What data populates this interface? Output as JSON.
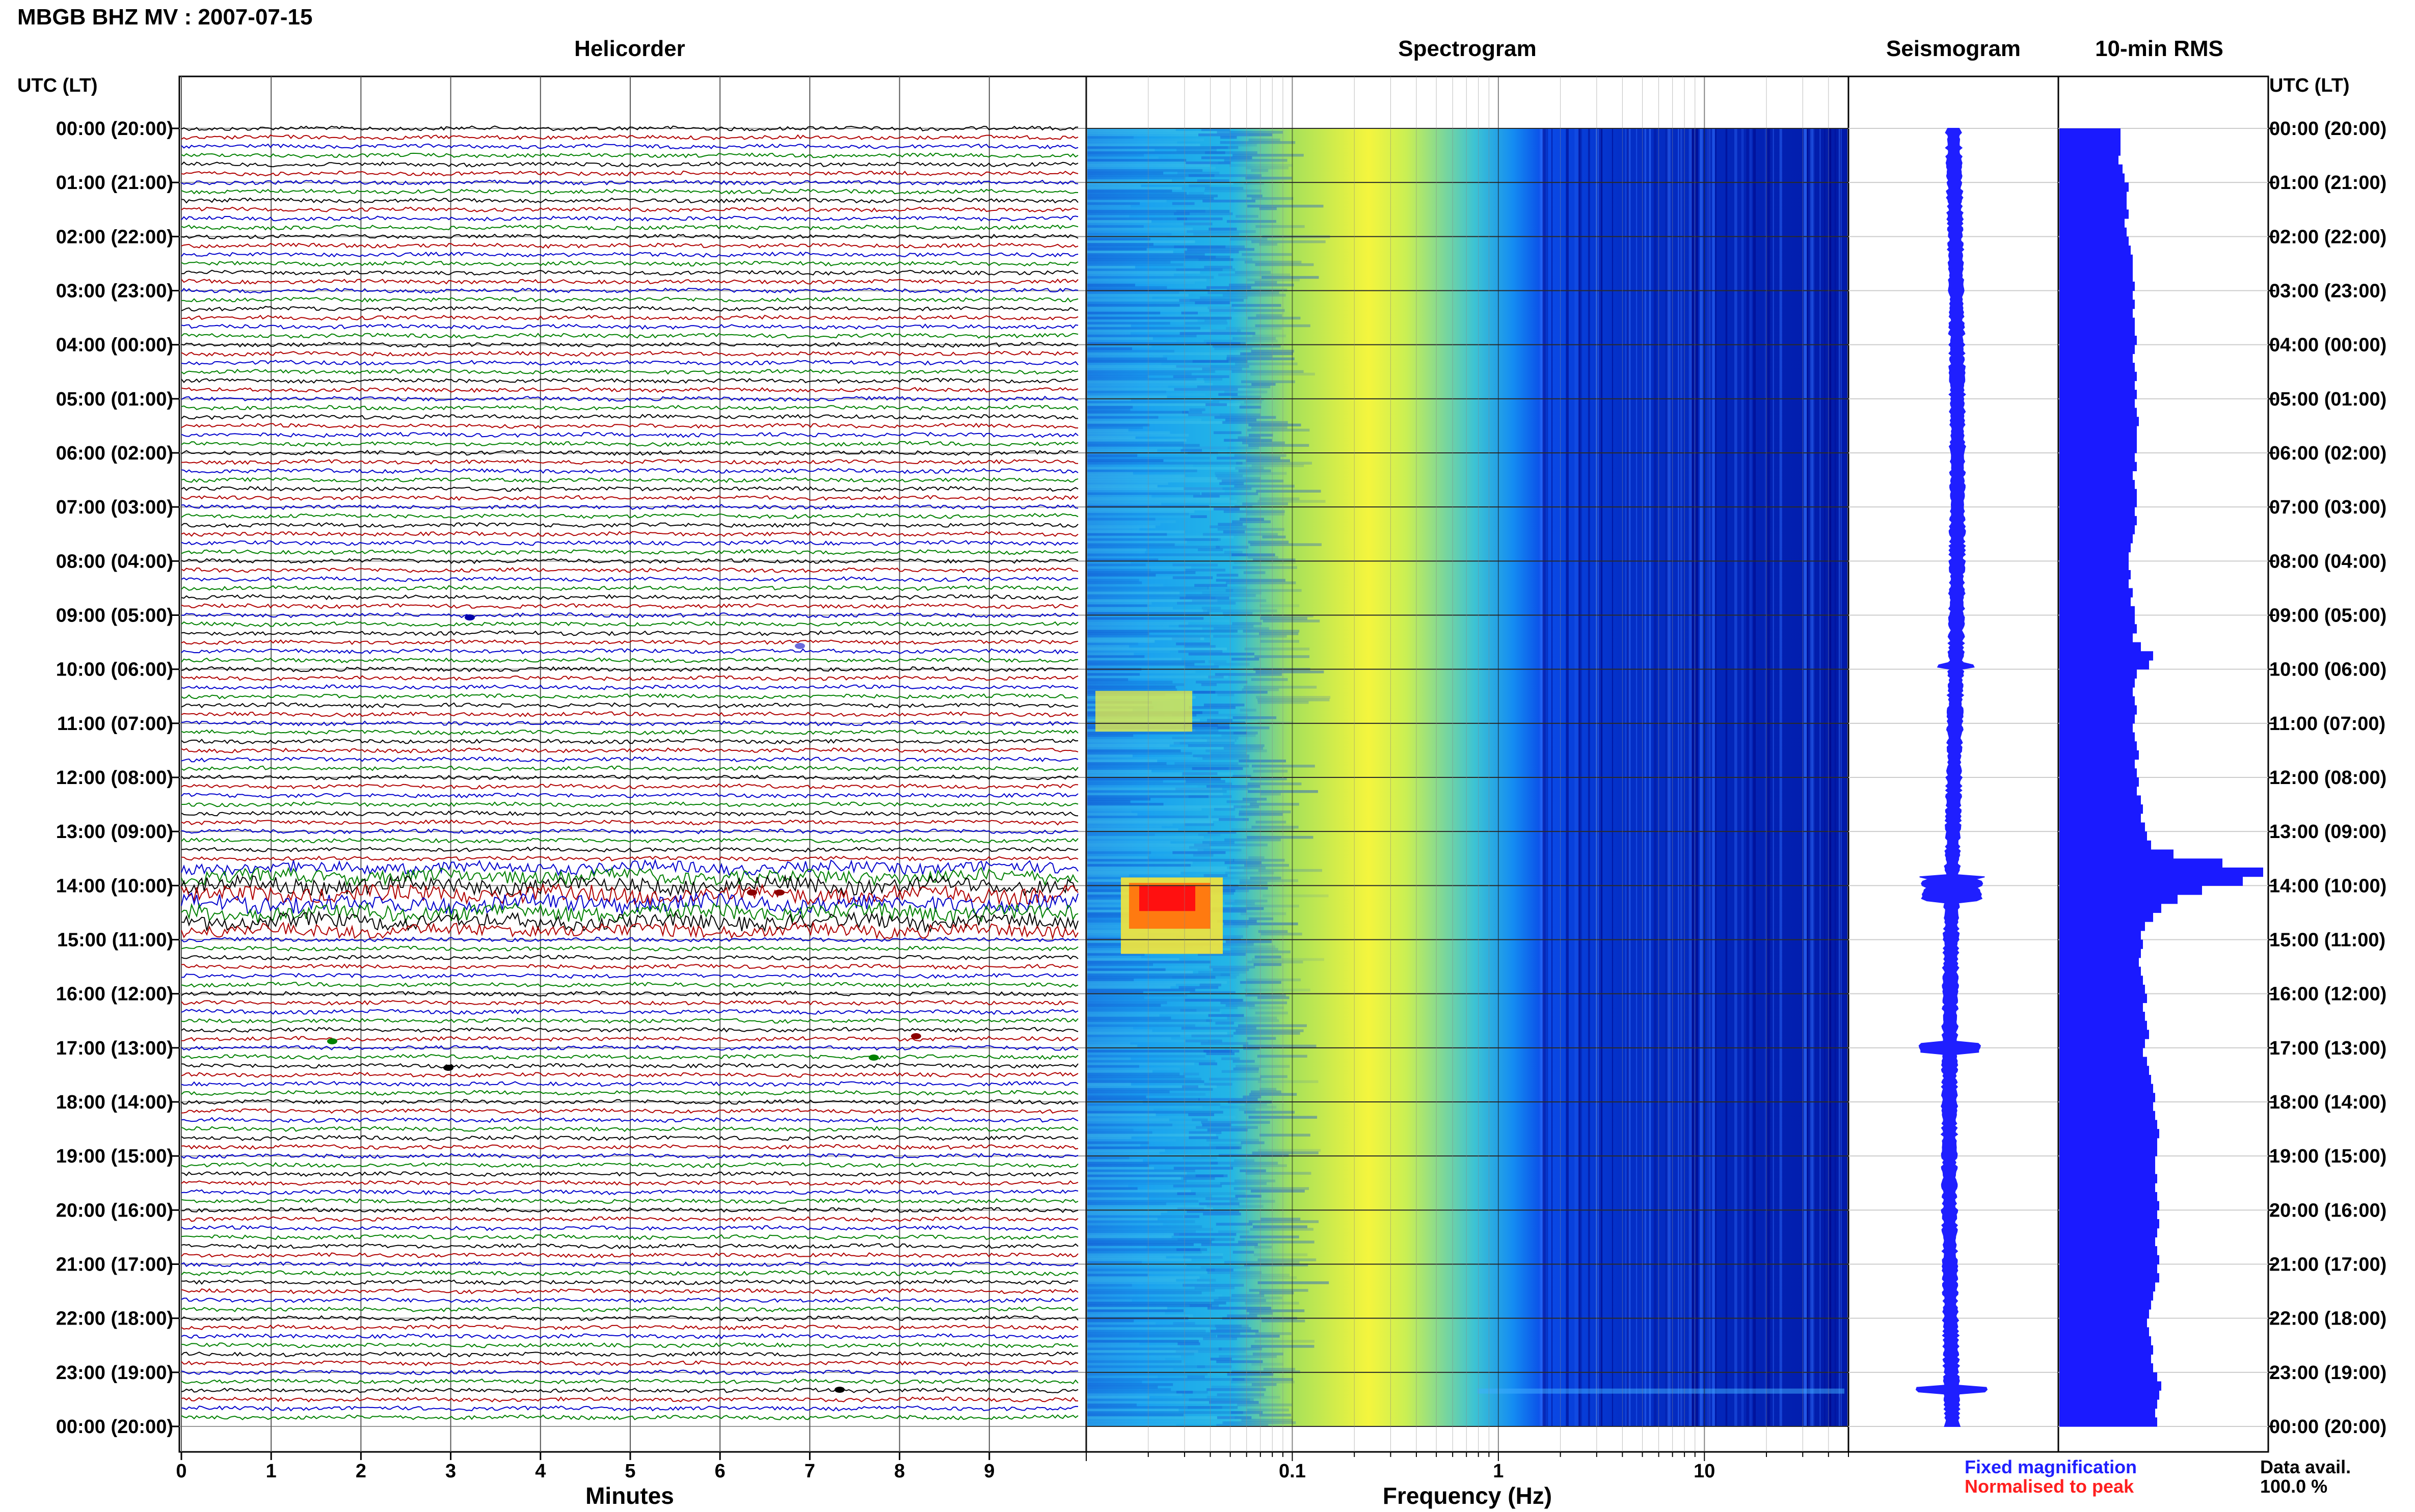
{
  "title": "MBGB BHZ MV : 2007-07-15",
  "panels": {
    "helicorder": "Helicorder",
    "spectrogram": "Spectrogram",
    "seismogram": "Seismogram",
    "rms": "10-min RMS"
  },
  "axes": {
    "time_label_left": "UTC (LT)",
    "time_label_right": "UTC (LT)",
    "helicorder_xlabel": "Minutes",
    "spectrogram_xlabel": "Frequency (Hz)"
  },
  "legend": {
    "fixed": "Fixed magnification",
    "normalised": "Normalised to peak",
    "fixed_color": "#1f1fff",
    "normalised_color": "#ff1f1f"
  },
  "availability": {
    "label": "Data avail.",
    "value": "100.0 %"
  },
  "chart_data": [
    {
      "type": "line",
      "panel": "helicorder",
      "title": "Helicorder",
      "xlabel": "Minutes",
      "x_ticks": [
        "0",
        "1",
        "2",
        "3",
        "4",
        "5",
        "6",
        "7",
        "8",
        "9"
      ],
      "xlim": [
        0,
        10
      ],
      "y_ticks": [
        "00:00 (20:00)",
        "01:00 (21:00)",
        "02:00 (22:00)",
        "03:00 (23:00)",
        "04:00 (00:00)",
        "05:00 (01:00)",
        "06:00 (02:00)",
        "07:00 (03:00)",
        "08:00 (04:00)",
        "09:00 (05:00)",
        "10:00 (06:00)",
        "11:00 (07:00)",
        "12:00 (08:00)",
        "13:00 (09:00)",
        "14:00 (10:00)",
        "15:00 (11:00)",
        "16:00 (12:00)",
        "17:00 (13:00)",
        "18:00 (14:00)",
        "19:00 (15:00)",
        "20:00 (16:00)",
        "21:00 (17:00)",
        "22:00 (18:00)",
        "23:00 (19:00)",
        "00:00 (20:00)"
      ],
      "trace_colors": [
        "#000000",
        "#b00000",
        "#0000cc",
        "#008000"
      ]
    },
    {
      "type": "heatmap",
      "panel": "spectrogram",
      "title": "Spectrogram",
      "xlabel": "Frequency (Hz)",
      "x_scale": "log",
      "xlim": [
        0.01,
        50
      ],
      "x_ticks": [
        "0.1",
        "1",
        "10"
      ],
      "colors": {
        "low": "#0000a0",
        "mid": "#1aa0ff",
        "high": "#ffff40",
        "peak": "#ff0000"
      }
    },
    {
      "type": "line",
      "panel": "seismogram",
      "title": "Seismogram",
      "color": "#1f1fff"
    },
    {
      "type": "bar",
      "panel": "rms",
      "title": "10-min RMS",
      "orientation": "horizontal",
      "color": "#1a1aff",
      "values": [
        0.3,
        0.3,
        0.3,
        0.29,
        0.31,
        0.32,
        0.34,
        0.33,
        0.33,
        0.34,
        0.32,
        0.33,
        0.34,
        0.35,
        0.36,
        0.36,
        0.36,
        0.37,
        0.36,
        0.37,
        0.36,
        0.37,
        0.37,
        0.38,
        0.37,
        0.36,
        0.37,
        0.38,
        0.37,
        0.38,
        0.37,
        0.38,
        0.39,
        0.38,
        0.38,
        0.38,
        0.37,
        0.38,
        0.36,
        0.37,
        0.38,
        0.38,
        0.37,
        0.38,
        0.37,
        0.36,
        0.35,
        0.34,
        0.34,
        0.35,
        0.34,
        0.36,
        0.35,
        0.37,
        0.37,
        0.38,
        0.36,
        0.4,
        0.46,
        0.44,
        0.38,
        0.37,
        0.36,
        0.37,
        0.38,
        0.37,
        0.36,
        0.37,
        0.38,
        0.39,
        0.37,
        0.38,
        0.39,
        0.38,
        0.4,
        0.41,
        0.4,
        0.42,
        0.43,
        0.45,
        0.56,
        0.8,
        1.0,
        0.9,
        0.7,
        0.58,
        0.5,
        0.46,
        0.42,
        0.4,
        0.41,
        0.4,
        0.39,
        0.4,
        0.41,
        0.42,
        0.43,
        0.41,
        0.42,
        0.43,
        0.44,
        0.42,
        0.41,
        0.43,
        0.44,
        0.45,
        0.46,
        0.47,
        0.46,
        0.47,
        0.48,
        0.49,
        0.48,
        0.48,
        0.47,
        0.47,
        0.48,
        0.47,
        0.48,
        0.49,
        0.48,
        0.49,
        0.48,
        0.47,
        0.48,
        0.49,
        0.48,
        0.49,
        0.47,
        0.46,
        0.45,
        0.44,
        0.43,
        0.44,
        0.45,
        0.46,
        0.45,
        0.46,
        0.48,
        0.5,
        0.49,
        0.48,
        0.47,
        0.48
      ]
    }
  ]
}
